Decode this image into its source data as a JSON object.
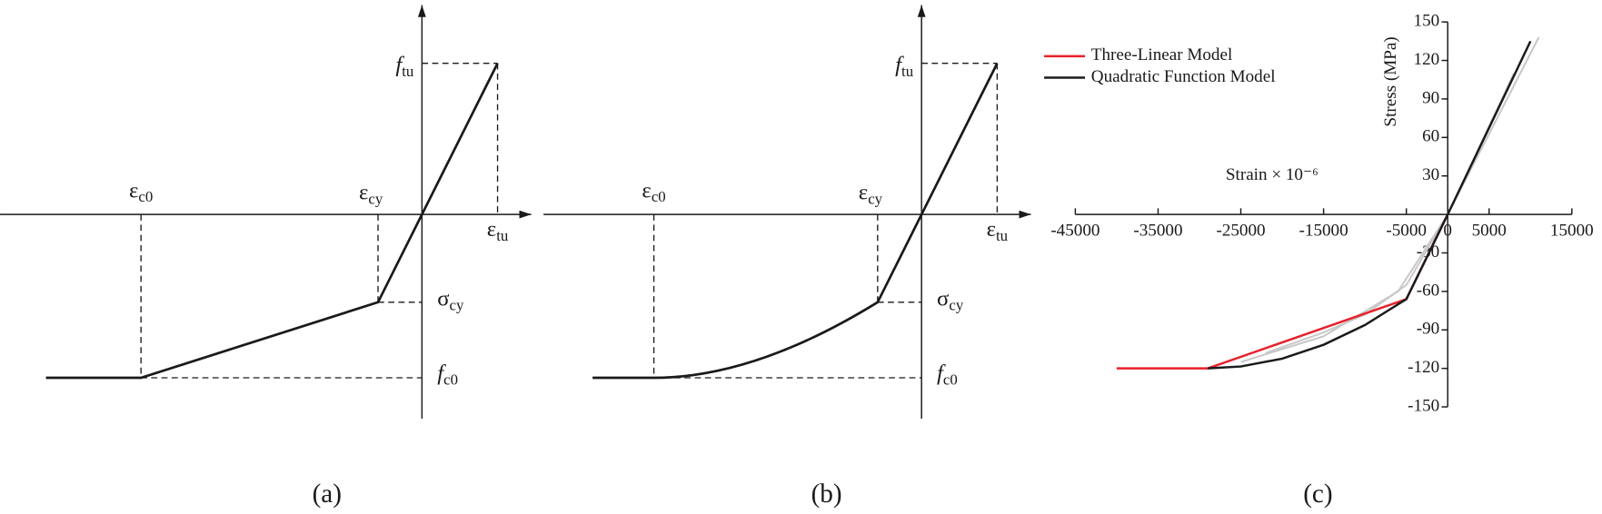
{
  "diagrams": [
    {
      "caption": "(a)",
      "curve": "linear",
      "labels": {
        "ec0": {
          "symbol": "ε",
          "sub": "c0"
        },
        "ecy": {
          "symbol": "ε",
          "sub": "cy"
        },
        "etu": {
          "symbol": "ε",
          "sub": "tu"
        },
        "ftu": {
          "symbol": "f",
          "sub": "tu"
        },
        "scy": {
          "symbol": "σ",
          "sub": "cy"
        },
        "fc0": {
          "symbol": "f",
          "sub": "c0"
        }
      }
    },
    {
      "caption": "(b)",
      "curve": "quadratic",
      "labels": {
        "ec0": {
          "symbol": "ε",
          "sub": "c0"
        },
        "ecy": {
          "symbol": "ε",
          "sub": "cy"
        },
        "etu": {
          "symbol": "ε",
          "sub": "tu"
        },
        "ftu": {
          "symbol": "f",
          "sub": "tu"
        },
        "scy": {
          "symbol": "σ",
          "sub": "cy"
        },
        "fc0": {
          "symbol": "f",
          "sub": "c0"
        }
      }
    }
  ],
  "chart_data": {
    "type": "line",
    "caption": "(c)",
    "x_label": "Strain × 10⁻⁶",
    "y_label": "Stress (MPa)",
    "xlim": [
      -45000,
      15000
    ],
    "ylim": [
      -150,
      150
    ],
    "xticks": [
      -45000,
      -35000,
      -25000,
      -15000,
      -5000,
      0,
      5000,
      15000
    ],
    "yticks": [
      -150,
      -120,
      -90,
      -60,
      -30,
      30,
      60,
      90,
      120,
      150
    ],
    "series": [
      {
        "color": "#c8c8c8",
        "x": [
          -22000,
          -15000,
          -10000,
          -5000,
          0,
          8000
        ],
        "values": [
          -108,
          -92,
          -78,
          -55,
          0,
          110
        ]
      },
      {
        "color": "#c8c8c8",
        "x": [
          -25000,
          -15000,
          -6000,
          0,
          11000
        ],
        "values": [
          -115,
          -95,
          -60,
          0,
          138
        ]
      },
      {
        "name": "Three-Linear Model",
        "color": "#e8202a",
        "x": [
          -40000,
          -29000,
          -5000,
          0
        ],
        "values": [
          -120,
          -120,
          -66,
          0
        ]
      },
      {
        "name": "Quadratic Function Model",
        "color": "#1a1a1a",
        "x": [
          -29000,
          -25000,
          -20000,
          -15000,
          -10000,
          -5000,
          0,
          10000
        ],
        "values": [
          -120,
          -118.5,
          -112.4,
          -101.6,
          -86.2,
          -66,
          0,
          135
        ]
      }
    ]
  }
}
